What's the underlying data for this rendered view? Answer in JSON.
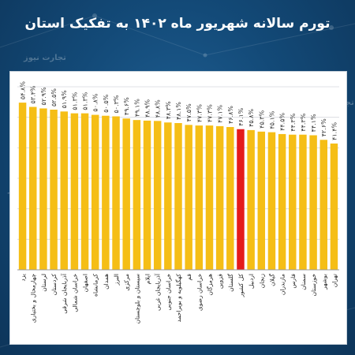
{
  "title": "تورم سالانه شهریور ماه ۱۴۰۲ به تفکیک استان",
  "watermark": "تجارت نیوز",
  "colors": {
    "bar": "#F5BE16",
    "highlight": "#E41B1B",
    "background": "#134A78",
    "grid": "#D5D9DD"
  },
  "chart_data": {
    "type": "bar",
    "ylim": [
      0,
      60
    ],
    "grid": true,
    "categories": [
      "یزد",
      "چهارمحال و بختیاری",
      "لرستان",
      "کردستان",
      "آذربایجان شرقی",
      "خراسان شمالی",
      "اصفهان",
      "کرمانشاه",
      "همدان",
      "البرز",
      "مرکزی",
      "سیستان و بلوچستان",
      "ایلام",
      "آذربایجان غربی",
      "خراسان جنوبی",
      "کهگیلویه و بویراحمد",
      "قم",
      "خراسان رضوی",
      "هرمزگان",
      "قزوین",
      "گلستان",
      "کل کشور",
      "اردبیل",
      "زنجان",
      "گیلان",
      "مازندران",
      "فارس",
      "سمنان",
      "خوزستان",
      "بوشهر",
      "تهران"
    ],
    "values": [
      54.8,
      53.4,
      52.9,
      52.5,
      51.9,
      51.3,
      51.3,
      50.8,
      50.5,
      50.3,
      49.6,
      49.1,
      48.9,
      48.8,
      48.3,
      48.1,
      47.5,
      47.3,
      47.3,
      47.1,
      46.8,
      46.1,
      45.8,
      45.3,
      45.1,
      44.5,
      44.3,
      44.3,
      44.1,
      42.6,
      41.4
    ],
    "data_labels": [
      "۵۴.۸%",
      "۵۳.۴%",
      "۵۲.۹%",
      "۵۲.۵%",
      "۵۱.۹%",
      "۵۱.۳%",
      "۵۱.۳%",
      "۵۰.۸%",
      "۵۰.۵%",
      "۵۰.۳%",
      "۴۹.۶%",
      "۴۹.۱%",
      "۴۸.۹%",
      "۴۸.۸%",
      "۴۸.۳%",
      "۴۸.۱%",
      "۴۷.۵%",
      "۴۷.۳%",
      "۴۷.۳%",
      "۴۷.۱%",
      "۴۶.۸%",
      "۴۶.۱%",
      "۴۵.۸%",
      "۴۵.۳%",
      "۴۵.۱%",
      "۴۴.۵%",
      "۴۴.۳%",
      "۴۴.۳%",
      "۴۴.۱%",
      "۴۲.۶%",
      "۴۱.۴%"
    ],
    "highlight_category": "کل کشور"
  }
}
